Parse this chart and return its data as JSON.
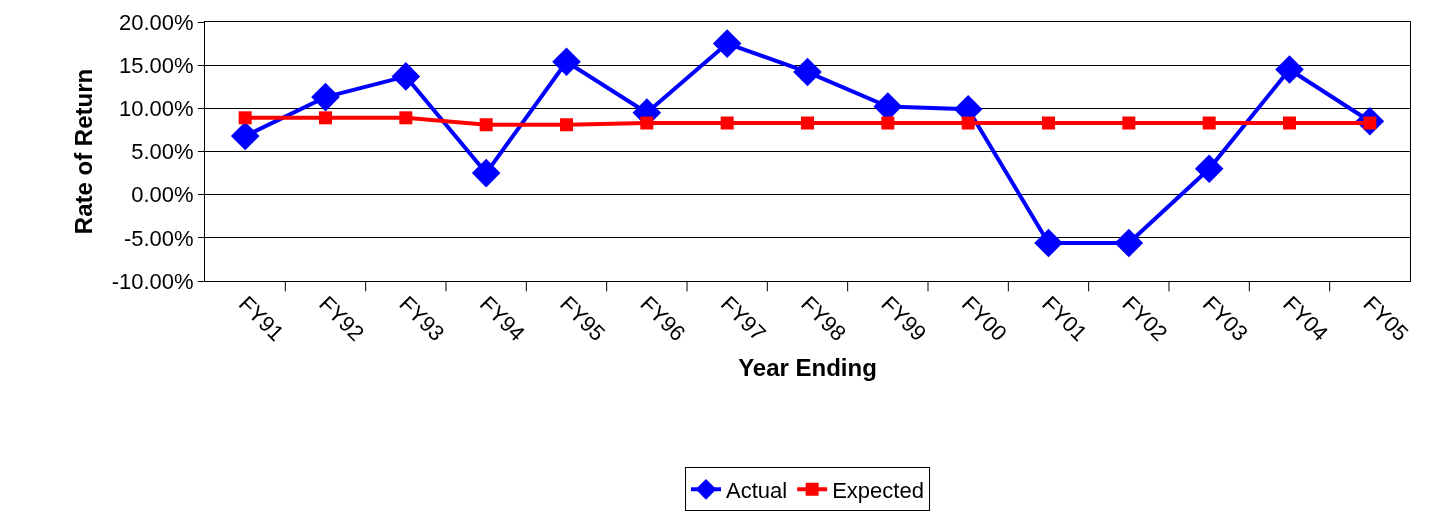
{
  "chart_data": {
    "type": "line",
    "xlabel": "Year Ending",
    "ylabel": "Rate of Return",
    "categories": [
      "FY91",
      "FY92",
      "FY93",
      "FY94",
      "FY95",
      "FY96",
      "FY97",
      "FY98",
      "FY99",
      "FY00",
      "FY01",
      "FY02",
      "FY03",
      "FY04",
      "FY05"
    ],
    "series": [
      {
        "name": "Actual",
        "color": "#0000ff",
        "marker": "diamond",
        "values": [
          6.8,
          11.3,
          13.7,
          2.5,
          15.4,
          9.5,
          17.5,
          14.2,
          10.2,
          9.9,
          -5.6,
          -5.6,
          3.0,
          14.5,
          8.5
        ]
      },
      {
        "name": "Expected",
        "color": "#ff0000",
        "marker": "square",
        "values": [
          8.9,
          8.9,
          8.9,
          8.1,
          8.1,
          8.3,
          8.3,
          8.3,
          8.3,
          8.3,
          8.3,
          8.3,
          8.3,
          8.3,
          8.3
        ]
      }
    ],
    "ylim": [
      -10,
      20
    ],
    "yticks": [
      {
        "value": -10,
        "label": "-10.00%"
      },
      {
        "value": -5,
        "label": "-5.00%"
      },
      {
        "value": 0,
        "label": "0.00%"
      },
      {
        "value": 5,
        "label": "5.00%"
      },
      {
        "value": 10,
        "label": "10.00%"
      },
      {
        "value": 15,
        "label": "15.00%"
      },
      {
        "value": 20,
        "label": "20.00%"
      }
    ],
    "grid": "y",
    "legend": "bottom",
    "line_style": "solid"
  }
}
